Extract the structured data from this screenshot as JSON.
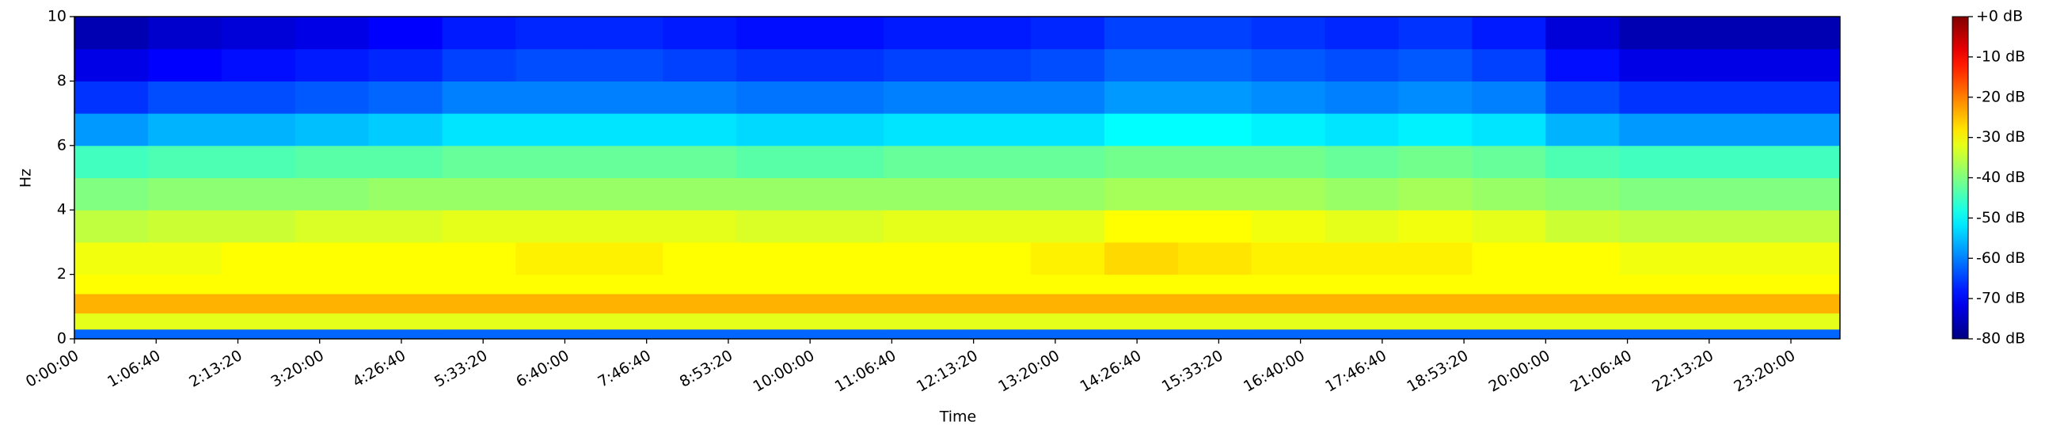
{
  "chart_data": {
    "type": "spectrogram",
    "colormap": "jet",
    "xlabel": "Time",
    "ylabel": "Hz",
    "xlim": [
      0,
      86400
    ],
    "ylim": [
      0,
      10
    ],
    "zlim": [
      -80,
      0
    ],
    "xticks": [
      {
        "value": 0,
        "label": "0:00:00"
      },
      {
        "value": 4000,
        "label": "1:06:40"
      },
      {
        "value": 8000,
        "label": "2:13:20"
      },
      {
        "value": 12000,
        "label": "3:20:00"
      },
      {
        "value": 16000,
        "label": "4:26:40"
      },
      {
        "value": 20000,
        "label": "5:33:20"
      },
      {
        "value": 24000,
        "label": "6:40:00"
      },
      {
        "value": 28000,
        "label": "7:46:40"
      },
      {
        "value": 32000,
        "label": "8:53:20"
      },
      {
        "value": 36000,
        "label": "10:00:00"
      },
      {
        "value": 40000,
        "label": "11:06:40"
      },
      {
        "value": 44000,
        "label": "12:13:20"
      },
      {
        "value": 48000,
        "label": "13:20:00"
      },
      {
        "value": 52000,
        "label": "14:26:40"
      },
      {
        "value": 56000,
        "label": "15:33:20"
      },
      {
        "value": 60000,
        "label": "16:40:00"
      },
      {
        "value": 64000,
        "label": "17:46:40"
      },
      {
        "value": 68000,
        "label": "18:53:20"
      },
      {
        "value": 72000,
        "label": "20:00:00"
      },
      {
        "value": 76000,
        "label": "21:06:40"
      },
      {
        "value": 80000,
        "label": "22:13:20"
      },
      {
        "value": 84000,
        "label": "23:20:00"
      }
    ],
    "yticks": [
      0,
      2,
      4,
      6,
      8,
      10
    ],
    "zticks": [
      {
        "value": 0,
        "label": "+0 dB"
      },
      {
        "value": -10,
        "label": "-10 dB"
      },
      {
        "value": -20,
        "label": "-20 dB"
      },
      {
        "value": -30,
        "label": "-30 dB"
      },
      {
        "value": -40,
        "label": "-40 dB"
      },
      {
        "value": -50,
        "label": "-50 dB"
      },
      {
        "value": -60,
        "label": "-60 dB"
      },
      {
        "value": -70,
        "label": "-70 dB"
      },
      {
        "value": -80,
        "label": "-80 dB"
      }
    ],
    "xbins": [
      0,
      3600,
      7200,
      10800,
      14400,
      18000,
      21600,
      25200,
      28800,
      32400,
      36000,
      39600,
      43200,
      46800,
      50400,
      54000,
      57600,
      61200,
      64800,
      68400,
      72000,
      75600,
      79200,
      82800,
      86400
    ],
    "ybins": [
      0,
      0.3,
      0.8,
      1.4,
      2,
      3,
      4,
      5,
      6,
      7,
      8,
      9,
      10
    ],
    "values": [
      [
        -62,
        -62,
        -62,
        -62,
        -62,
        -62,
        -62,
        -62,
        -62,
        -62,
        -62,
        -62,
        -62,
        -62,
        -62,
        -62,
        -62,
        -62,
        -62,
        -62,
        -62,
        -62,
        -62,
        -62
      ],
      [
        -32,
        -32,
        -32,
        -32,
        -32,
        -32,
        -32,
        -32,
        -32,
        -32,
        -32,
        -32,
        -32,
        -32,
        -32,
        -32,
        -32,
        -32,
        -32,
        -32,
        -32,
        -32,
        -32,
        -32
      ],
      [
        -24,
        -24,
        -24,
        -24,
        -24,
        -24,
        -24,
        -24,
        -24,
        -24,
        -24,
        -24,
        -24,
        -24,
        -24,
        -24,
        -24,
        -24,
        -24,
        -24,
        -24,
        -24,
        -24,
        -24
      ],
      [
        -30,
        -30,
        -30,
        -30,
        -30,
        -30,
        -30,
        -30,
        -30,
        -30,
        -30,
        -30,
        -30,
        -30,
        -30,
        -30,
        -30,
        -30,
        -30,
        -30,
        -30,
        -30,
        -30,
        -30
      ],
      [
        -31,
        -31,
        -30,
        -30,
        -30,
        -30,
        -29,
        -29,
        -30,
        -30,
        -30,
        -30,
        -30,
        -29,
        -27,
        -28,
        -29,
        -29,
        -29,
        -30,
        -30,
        -31,
        -31,
        -31
      ],
      [
        -35,
        -34,
        -34,
        -33,
        -33,
        -32,
        -32,
        -32,
        -32,
        -33,
        -33,
        -32,
        -32,
        -32,
        -30,
        -30,
        -31,
        -32,
        -31,
        -32,
        -34,
        -35,
        -35,
        -35
      ],
      [
        -40,
        -39,
        -39,
        -39,
        -38,
        -38,
        -38,
        -38,
        -38,
        -38,
        -38,
        -38,
        -38,
        -38,
        -37,
        -37,
        -37,
        -38,
        -37,
        -38,
        -39,
        -40,
        -40,
        -40
      ],
      [
        -45,
        -44,
        -44,
        -43,
        -43,
        -42,
        -42,
        -42,
        -42,
        -43,
        -43,
        -42,
        -42,
        -42,
        -41,
        -41,
        -41,
        -42,
        -41,
        -42,
        -44,
        -45,
        -45,
        -45
      ],
      [
        -58,
        -56,
        -56,
        -55,
        -54,
        -52,
        -52,
        -52,
        -52,
        -53,
        -53,
        -52,
        -52,
        -52,
        -50,
        -50,
        -51,
        -52,
        -51,
        -52,
        -56,
        -58,
        -58,
        -58
      ],
      [
        -66,
        -64,
        -64,
        -63,
        -62,
        -60,
        -60,
        -60,
        -60,
        -61,
        -61,
        -60,
        -60,
        -60,
        -58,
        -58,
        -59,
        -60,
        -59,
        -60,
        -64,
        -66,
        -66,
        -66
      ],
      [
        -72,
        -70,
        -69,
        -68,
        -67,
        -65,
        -64,
        -64,
        -65,
        -66,
        -66,
        -65,
        -65,
        -64,
        -62,
        -62,
        -63,
        -64,
        -63,
        -65,
        -69,
        -72,
        -72,
        -72
      ],
      [
        -76,
        -74,
        -73,
        -72,
        -70,
        -68,
        -67,
        -67,
        -68,
        -69,
        -69,
        -68,
        -68,
        -67,
        -65,
        -65,
        -66,
        -67,
        -66,
        -68,
        -73,
        -76,
        -76,
        -76
      ]
    ]
  }
}
